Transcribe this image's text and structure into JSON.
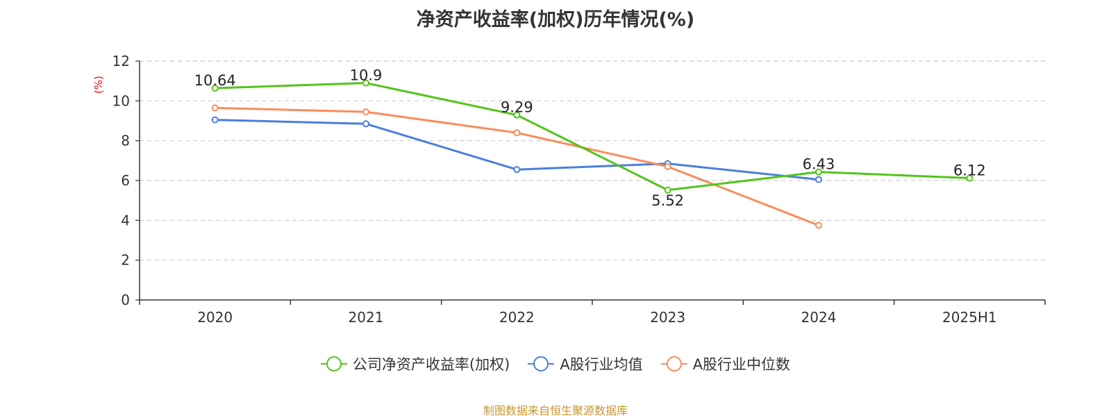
{
  "chart_data": {
    "type": "line",
    "title": "净资产收益率(加权)历年情况(%)",
    "ylabel": "(%)",
    "xlabel": "",
    "categories": [
      "2020",
      "2021",
      "2022",
      "2023",
      "2024",
      "2025H1"
    ],
    "ylim": [
      0,
      12
    ],
    "yticks": [
      0,
      2,
      4,
      6,
      8,
      10,
      12
    ],
    "grid": true,
    "legend_position": "bottom",
    "series": [
      {
        "name": "公司净资产收益率(加权)",
        "color": "#52c41a",
        "values": [
          10.64,
          10.9,
          9.29,
          5.52,
          6.43,
          6.12
        ],
        "labels": [
          "10.64",
          "10.9",
          "9.29",
          "5.52",
          "6.43",
          "6.12"
        ]
      },
      {
        "name": "A股行业均值",
        "color": "#4a7fdb",
        "values": [
          9.05,
          8.85,
          6.55,
          6.85,
          6.05,
          null
        ],
        "labels": null
      },
      {
        "name": "A股行业中位数",
        "color": "#fa8c5a",
        "values": [
          9.65,
          9.45,
          8.4,
          6.7,
          3.75,
          null
        ],
        "labels": null
      }
    ]
  },
  "source_text": "制图数据来自恒生聚源数据库",
  "source_color": "#c8962a",
  "ylabel_color": "#ff0000"
}
